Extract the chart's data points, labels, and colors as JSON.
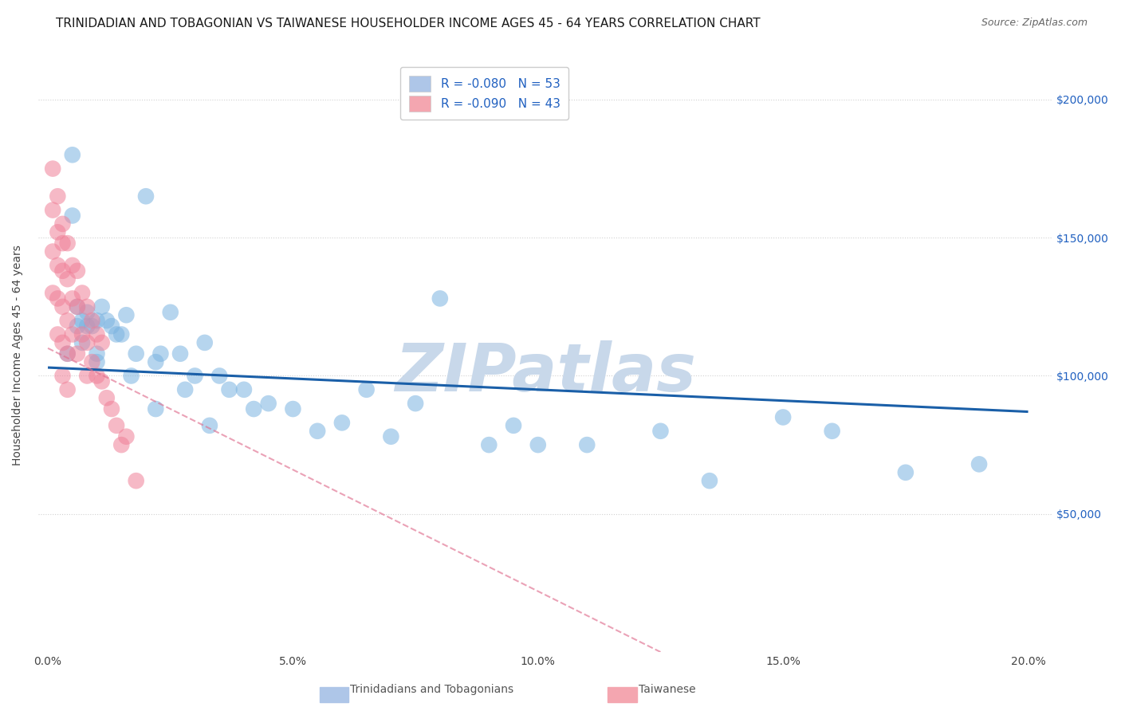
{
  "title": "TRINIDADIAN AND TOBAGONIAN VS TAIWANESE HOUSEHOLDER INCOME AGES 45 - 64 YEARS CORRELATION CHART",
  "source": "Source: ZipAtlas.com",
  "ylabel": "Householder Income Ages 45 - 64 years",
  "xlabel_ticks": [
    "0.0%",
    "5.0%",
    "10.0%",
    "15.0%",
    "20.0%"
  ],
  "xlabel_vals": [
    0.0,
    0.05,
    0.1,
    0.15,
    0.2
  ],
  "ytick_labels": [
    "$50,000",
    "$100,000",
    "$150,000",
    "$200,000"
  ],
  "ytick_vals": [
    50000,
    100000,
    150000,
    200000
  ],
  "ylim": [
    0,
    215000
  ],
  "xlim": [
    -0.002,
    0.205
  ],
  "watermark": "ZIPatlas",
  "blue_scatter_x": [
    0.004,
    0.005,
    0.005,
    0.006,
    0.006,
    0.007,
    0.007,
    0.008,
    0.008,
    0.009,
    0.01,
    0.01,
    0.01,
    0.011,
    0.012,
    0.013,
    0.014,
    0.015,
    0.016,
    0.017,
    0.018,
    0.02,
    0.022,
    0.023,
    0.025,
    0.027,
    0.03,
    0.032,
    0.035,
    0.037,
    0.04,
    0.042,
    0.045,
    0.05,
    0.055,
    0.06,
    0.065,
    0.07,
    0.075,
    0.08,
    0.09,
    0.095,
    0.1,
    0.11,
    0.125,
    0.135,
    0.15,
    0.16,
    0.175,
    0.19,
    0.022,
    0.028,
    0.033
  ],
  "blue_scatter_y": [
    108000,
    180000,
    158000,
    125000,
    118000,
    120000,
    112000,
    123000,
    118000,
    118000,
    108000,
    120000,
    105000,
    125000,
    120000,
    118000,
    115000,
    115000,
    122000,
    100000,
    108000,
    165000,
    105000,
    108000,
    123000,
    108000,
    100000,
    112000,
    100000,
    95000,
    95000,
    88000,
    90000,
    88000,
    80000,
    83000,
    95000,
    78000,
    90000,
    128000,
    75000,
    82000,
    75000,
    75000,
    80000,
    62000,
    85000,
    80000,
    65000,
    68000,
    88000,
    95000,
    82000
  ],
  "pink_scatter_x": [
    0.001,
    0.001,
    0.001,
    0.001,
    0.002,
    0.002,
    0.002,
    0.002,
    0.002,
    0.003,
    0.003,
    0.003,
    0.003,
    0.003,
    0.003,
    0.004,
    0.004,
    0.004,
    0.004,
    0.004,
    0.005,
    0.005,
    0.005,
    0.006,
    0.006,
    0.006,
    0.007,
    0.007,
    0.008,
    0.008,
    0.008,
    0.009,
    0.009,
    0.01,
    0.01,
    0.011,
    0.011,
    0.012,
    0.013,
    0.014,
    0.015,
    0.016,
    0.018
  ],
  "pink_scatter_y": [
    175000,
    160000,
    145000,
    130000,
    165000,
    152000,
    140000,
    128000,
    115000,
    155000,
    148000,
    138000,
    125000,
    112000,
    100000,
    148000,
    135000,
    120000,
    108000,
    95000,
    140000,
    128000,
    115000,
    138000,
    125000,
    108000,
    130000,
    115000,
    125000,
    112000,
    100000,
    120000,
    105000,
    115000,
    100000,
    112000,
    98000,
    92000,
    88000,
    82000,
    75000,
    78000,
    62000
  ],
  "blue_line_x": [
    0.0,
    0.2
  ],
  "blue_line_y": [
    103000,
    87000
  ],
  "pink_line_x": [
    0.0,
    0.125
  ],
  "pink_line_y": [
    110000,
    0
  ],
  "blue_scatter_color": "#7bb3e0",
  "pink_scatter_color": "#f08098",
  "blue_line_color": "#1a5fa8",
  "pink_line_color": "#e07090",
  "grid_color": "#cccccc",
  "background_color": "#ffffff",
  "title_fontsize": 11,
  "source_fontsize": 9,
  "watermark_color": "#c8d8ea",
  "watermark_fontsize": 60,
  "legend_blue_color": "#aec6e8",
  "legend_pink_color": "#f4a6b0",
  "legend_text_color": "#2060c0"
}
